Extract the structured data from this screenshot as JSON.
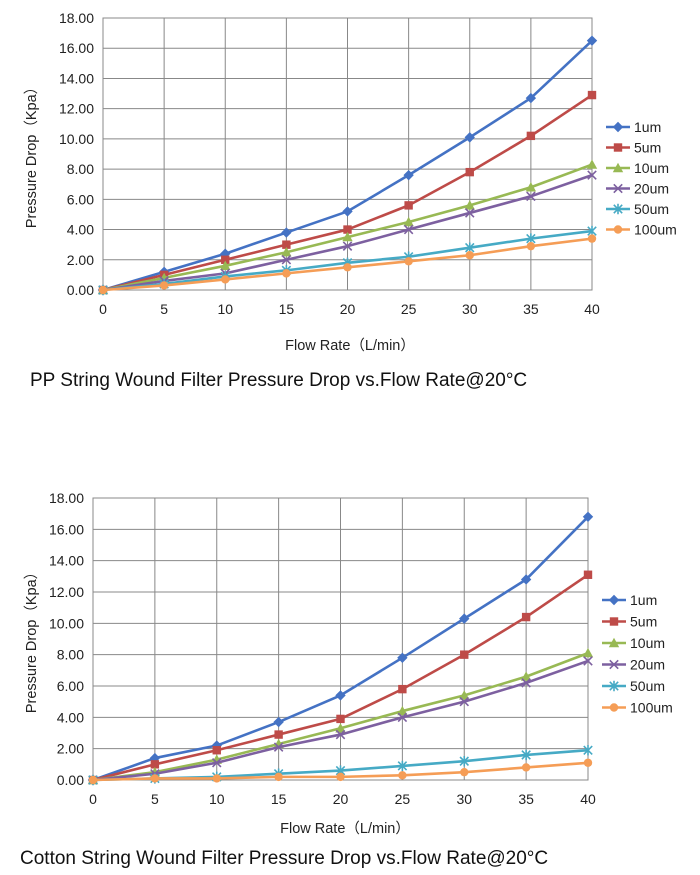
{
  "chart_data": [
    {
      "type": "line",
      "caption": "PP String Wound Filter Pressure Drop vs.Flow Rate@20°C",
      "xlabel": "Flow Rate（L/min）",
      "ylabel": "Pressure Drop（Kpa）",
      "x": [
        0,
        5,
        10,
        15,
        20,
        25,
        30,
        35,
        40
      ],
      "x_ticks": [
        "0",
        "5",
        "10",
        "15",
        "20",
        "25",
        "30",
        "35",
        "40"
      ],
      "y_ticks": [
        "0.00",
        "2.00",
        "4.00",
        "6.00",
        "8.00",
        "10.00",
        "12.00",
        "14.00",
        "16.00",
        "18.00"
      ],
      "ylim": [
        0,
        18
      ],
      "xlim": [
        0,
        40
      ],
      "grid": true,
      "legend_position": "right",
      "series": [
        {
          "name": "1um",
          "color": "#4472c4",
          "marker": "diamond",
          "values": [
            0,
            1.2,
            2.4,
            3.8,
            5.2,
            7.6,
            10.1,
            12.7,
            16.5
          ]
        },
        {
          "name": "5um",
          "color": "#be4b48",
          "marker": "square",
          "values": [
            0,
            1.0,
            2.0,
            3.0,
            4.0,
            5.6,
            7.8,
            10.2,
            12.9
          ]
        },
        {
          "name": "10um",
          "color": "#98b954",
          "marker": "triangle",
          "values": [
            0,
            0.8,
            1.6,
            2.5,
            3.5,
            4.5,
            5.6,
            6.8,
            8.3
          ]
        },
        {
          "name": "20um",
          "color": "#7d60a0",
          "marker": "x",
          "values": [
            0,
            0.6,
            1.1,
            2.0,
            2.9,
            4.0,
            5.1,
            6.2,
            7.6
          ]
        },
        {
          "name": "50um",
          "color": "#46aac5",
          "marker": "star",
          "values": [
            0,
            0.4,
            0.9,
            1.3,
            1.8,
            2.2,
            2.8,
            3.4,
            3.9
          ]
        },
        {
          "name": "100um",
          "color": "#f59d56",
          "marker": "circle",
          "values": [
            0,
            0.3,
            0.7,
            1.1,
            1.5,
            1.9,
            2.3,
            2.9,
            3.4
          ]
        }
      ]
    },
    {
      "type": "line",
      "caption": "Cotton String Wound Filter Pressure Drop vs.Flow Rate@20°C",
      "xlabel": "Flow Rate（L/min）",
      "ylabel": "Pressure Drop（Kpa）",
      "x": [
        0,
        5,
        10,
        15,
        20,
        25,
        30,
        35,
        40
      ],
      "x_ticks": [
        "0",
        "5",
        "10",
        "15",
        "20",
        "25",
        "30",
        "35",
        "40"
      ],
      "y_ticks": [
        "0.00",
        "2.00",
        "4.00",
        "6.00",
        "8.00",
        "10.00",
        "12.00",
        "14.00",
        "16.00",
        "18.00"
      ],
      "ylim": [
        0,
        18
      ],
      "xlim": [
        0,
        40
      ],
      "grid": true,
      "legend_position": "right",
      "series": [
        {
          "name": "1um",
          "color": "#4472c4",
          "marker": "diamond",
          "values": [
            0,
            1.4,
            2.2,
            3.7,
            5.4,
            7.8,
            10.3,
            12.8,
            16.8
          ]
        },
        {
          "name": "5um",
          "color": "#be4b48",
          "marker": "square",
          "values": [
            0,
            1.0,
            1.9,
            2.9,
            3.9,
            5.8,
            8.0,
            10.4,
            13.1
          ]
        },
        {
          "name": "10um",
          "color": "#98b954",
          "marker": "triangle",
          "values": [
            0,
            0.5,
            1.3,
            2.3,
            3.3,
            4.4,
            5.4,
            6.6,
            8.1
          ]
        },
        {
          "name": "20um",
          "color": "#7d60a0",
          "marker": "x",
          "values": [
            0,
            0.4,
            1.1,
            2.1,
            2.9,
            4.0,
            5.0,
            6.2,
            7.6
          ]
        },
        {
          "name": "50um",
          "color": "#46aac5",
          "marker": "star",
          "values": [
            0,
            0.1,
            0.2,
            0.4,
            0.6,
            0.9,
            1.2,
            1.6,
            1.9
          ]
        },
        {
          "name": "100um",
          "color": "#f59d56",
          "marker": "circle",
          "values": [
            0,
            0.1,
            0.1,
            0.2,
            0.2,
            0.3,
            0.5,
            0.8,
            1.1
          ]
        }
      ]
    }
  ]
}
